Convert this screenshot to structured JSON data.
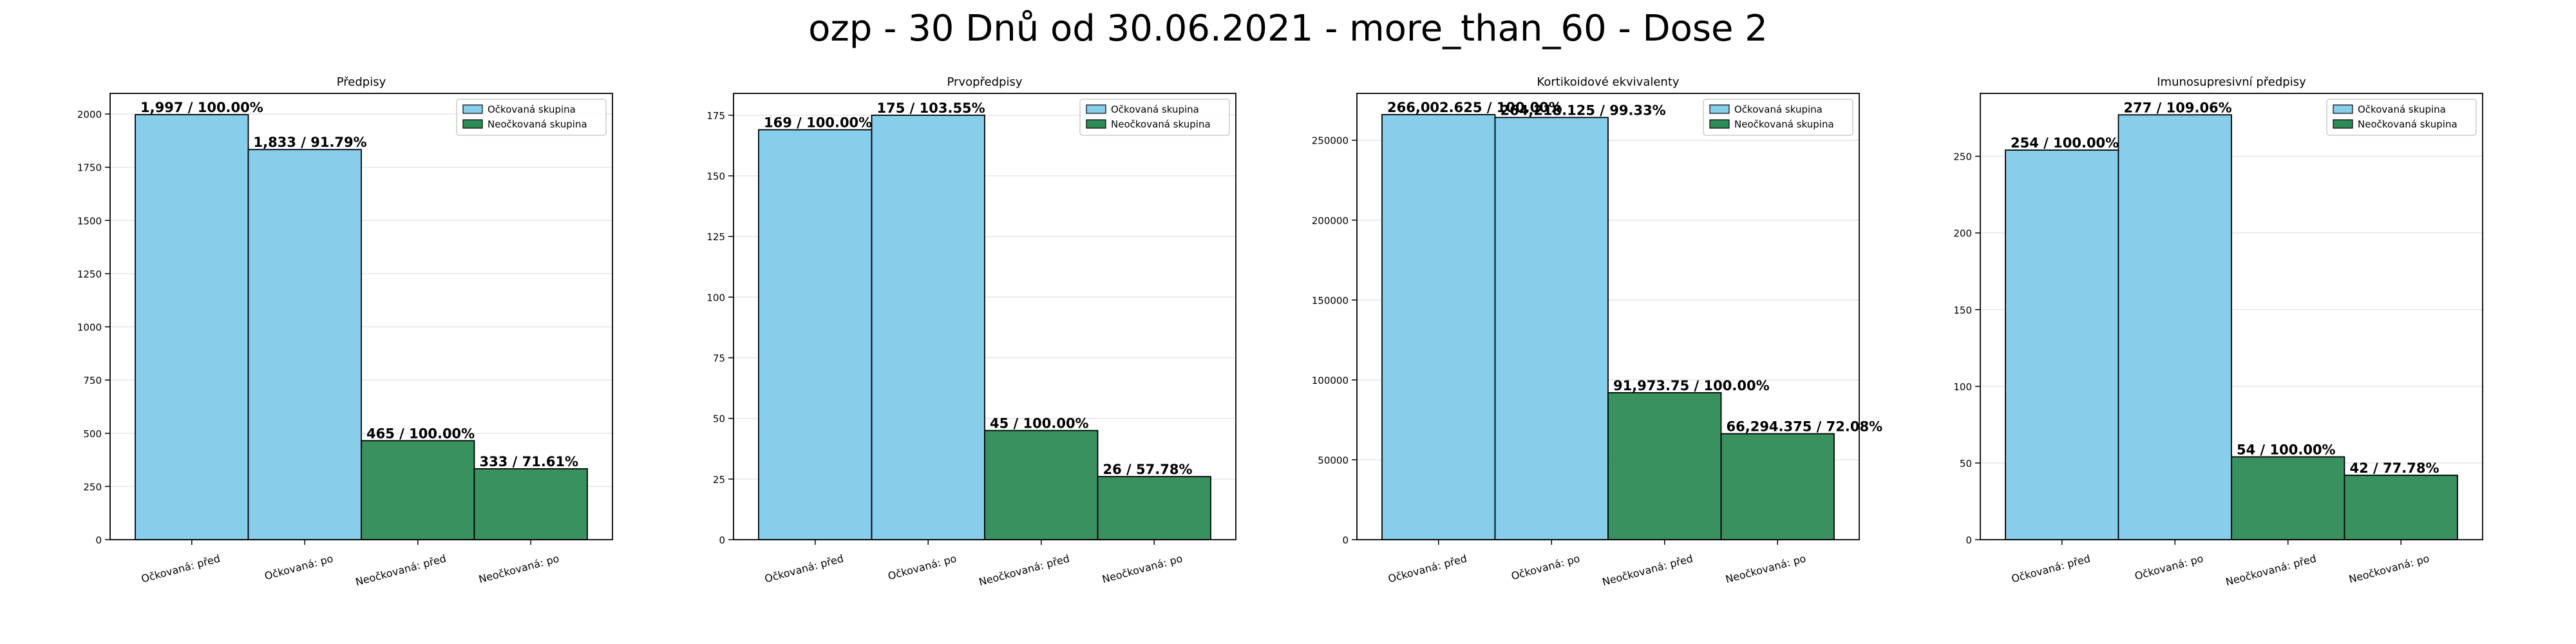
{
  "figure": {
    "suptitle": "ozp - 30 Dnů od 30.06.2021 - more_than_60 - Dose 2"
  },
  "colors": {
    "vaccinated": "#87ceeb",
    "unvaccinated": "#2e8b57",
    "edge": "#000000",
    "grid": "#e6e6e6"
  },
  "legend_labels": [
    "Očkovaná skupina",
    "Neočkovaná skupina"
  ],
  "chart_data": [
    {
      "type": "bar",
      "title": "Předpisy",
      "categories": [
        "Očkovaná: před",
        "Očkovaná: po",
        "Neočkovaná: před",
        "Neočkovaná: po"
      ],
      "values": [
        1997,
        1833,
        465,
        333
      ],
      "bar_labels": [
        "1,997 / 100.00%",
        "1,833 / 91.79%",
        "465 / 100.00%",
        "333 / 71.61%"
      ],
      "group_of_bar": [
        0,
        0,
        1,
        1
      ],
      "ylim": [
        0,
        2097
      ],
      "yticks": [
        0,
        250,
        500,
        750,
        1000,
        1250,
        1500,
        1750,
        2000
      ],
      "ytick_labels": [
        "0",
        "250",
        "500",
        "750",
        "1000",
        "1250",
        "1500",
        "1750",
        "2000"
      ],
      "legend": "top-right",
      "grid": "y"
    },
    {
      "type": "bar",
      "title": "Prvopředpisy",
      "categories": [
        "Očkovaná: před",
        "Očkovaná: po",
        "Neočkovaná: před",
        "Neočkovaná: po"
      ],
      "values": [
        169,
        175,
        45,
        26
      ],
      "bar_labels": [
        "169 / 100.00%",
        "175 / 103.55%",
        "45 / 100.00%",
        "26 / 57.78%"
      ],
      "group_of_bar": [
        0,
        0,
        1,
        1
      ],
      "ylim": [
        0,
        184
      ],
      "yticks": [
        0,
        25,
        50,
        75,
        100,
        125,
        150,
        175
      ],
      "ytick_labels": [
        "0",
        "25",
        "50",
        "75",
        "100",
        "125",
        "150",
        "175"
      ],
      "legend": "top-right",
      "grid": "y"
    },
    {
      "type": "bar",
      "title": "Kortikoidové ekvivalenty",
      "categories": [
        "Očkovaná: před",
        "Očkovaná: po",
        "Neočkovaná: před",
        "Neočkovaná: po"
      ],
      "values": [
        266002.625,
        264218.125,
        91973.75,
        66294.375
      ],
      "bar_labels": [
        "266,002.625 / 100.00%",
        "264,218.125 / 99.33%",
        "91,973.75 / 100.00%",
        "66,294.375 / 72.08%"
      ],
      "group_of_bar": [
        0,
        0,
        1,
        1
      ],
      "ylim": [
        0,
        279300
      ],
      "yticks": [
        0,
        50000,
        100000,
        150000,
        200000,
        250000
      ],
      "ytick_labels": [
        "0",
        "50000",
        "100000",
        "150000",
        "200000",
        "250000"
      ],
      "legend": "top-right",
      "grid": "y"
    },
    {
      "type": "bar",
      "title": "Imunosupresivní předpisy",
      "categories": [
        "Očkovaná: před",
        "Očkovaná: po",
        "Neočkovaná: před",
        "Neočkovaná: po"
      ],
      "values": [
        254,
        277,
        54,
        42
      ],
      "bar_labels": [
        "254 / 100.00%",
        "277 / 109.06%",
        "54 / 100.00%",
        "42 / 77.78%"
      ],
      "group_of_bar": [
        0,
        0,
        1,
        1
      ],
      "ylim": [
        0,
        291
      ],
      "yticks": [
        0,
        50,
        100,
        150,
        200,
        250
      ],
      "ytick_labels": [
        "0",
        "50",
        "100",
        "150",
        "200",
        "250"
      ],
      "legend": "top-right",
      "grid": "y"
    }
  ]
}
